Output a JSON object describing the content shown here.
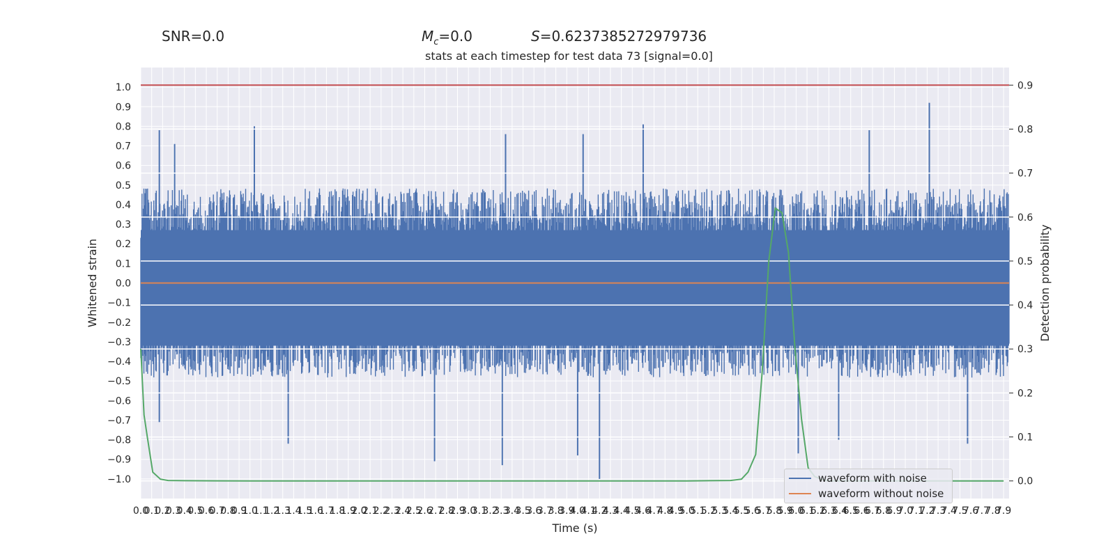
{
  "header": {
    "snr": "SNR=0.0",
    "mc_symbol": "M",
    "mc_sub": "c",
    "mc_value": "=0.0",
    "s_symbol": "S",
    "s_value": "=0.6237385272979736"
  },
  "chart_data": {
    "type": "line",
    "title": "stats at each timestep for test data 73 [signal=0.0]",
    "xlabel": "Time (s)",
    "ylabel": "Whitened strain",
    "y2label": "Detection probability",
    "xlim": [
      0.0,
      7.95
    ],
    "ylim": [
      -1.1,
      1.1
    ],
    "y2lim": [
      -0.04,
      0.94
    ],
    "x_ticks_step": 0.1,
    "x_ticks_count": 80,
    "y_ticks": [
      -1.0,
      -0.9,
      -0.8,
      -0.7,
      -0.6,
      -0.5,
      -0.4,
      -0.3,
      -0.2,
      -0.1,
      0.0,
      0.1,
      0.2,
      0.3,
      0.4,
      0.5,
      0.6,
      0.7,
      0.8,
      0.9,
      1.0
    ],
    "y2_ticks": [
      0.0,
      0.1,
      0.2,
      0.3,
      0.4,
      0.5,
      0.6,
      0.7,
      0.8,
      0.9
    ],
    "grid": true,
    "legend_position": "lower-right",
    "threshold": {
      "value": 0.9,
      "axis": "right",
      "color": "#c44e52"
    },
    "series": [
      {
        "name": "waveform with noise",
        "axis": "left",
        "color": "#4c72b0",
        "style": "dense noise waveform, typical range -0.5 to 0.5, peaks up to ~0.8",
        "typical_amplitude": 0.42,
        "peaks": [
          {
            "x": 0.17,
            "y": 0.78
          },
          {
            "x": 0.31,
            "y": 0.71
          },
          {
            "x": 1.04,
            "y": 0.8
          },
          {
            "x": 3.34,
            "y": 0.76
          },
          {
            "x": 4.05,
            "y": 0.76
          },
          {
            "x": 4.6,
            "y": 0.81
          },
          {
            "x": 6.67,
            "y": 0.78
          },
          {
            "x": 7.22,
            "y": 0.92
          },
          {
            "x": 4.2,
            "y": -1.0
          },
          {
            "x": 2.69,
            "y": -0.91
          },
          {
            "x": 3.31,
            "y": -0.93
          },
          {
            "x": 4.0,
            "y": -0.88
          },
          {
            "x": 1.35,
            "y": -0.82
          },
          {
            "x": 6.02,
            "y": -0.87
          },
          {
            "x": 6.39,
            "y": -0.8
          },
          {
            "x": 7.57,
            "y": -0.82
          },
          {
            "x": 0.17,
            "y": -0.71
          }
        ]
      },
      {
        "name": "waveform without noise",
        "axis": "left",
        "color": "#dd8452",
        "x": [
          0.0,
          7.95
        ],
        "y": [
          0.0,
          0.0
        ]
      },
      {
        "name": "Detection probability",
        "axis": "right",
        "color": "#55a868",
        "x": [
          0.0,
          0.03,
          0.06,
          0.11,
          0.18,
          0.25,
          0.4,
          0.7,
          1.0,
          2.0,
          3.0,
          4.0,
          5.0,
          5.4,
          5.5,
          5.56,
          5.63,
          5.69,
          5.75,
          5.81,
          5.87,
          5.93,
          5.99,
          6.05,
          6.11,
          6.17,
          6.24,
          6.3,
          6.5,
          7.0,
          7.9
        ],
        "y": [
          0.3,
          0.15,
          0.1,
          0.02,
          0.004,
          0.001,
          0.0005,
          0.0002,
          0.0,
          0.0,
          0.0,
          0.0,
          0.0,
          0.001,
          0.004,
          0.02,
          0.06,
          0.25,
          0.5,
          0.62,
          0.61,
          0.52,
          0.3,
          0.14,
          0.03,
          0.01,
          0.003,
          0.0,
          0.0,
          0.0,
          0.0
        ]
      }
    ]
  }
}
